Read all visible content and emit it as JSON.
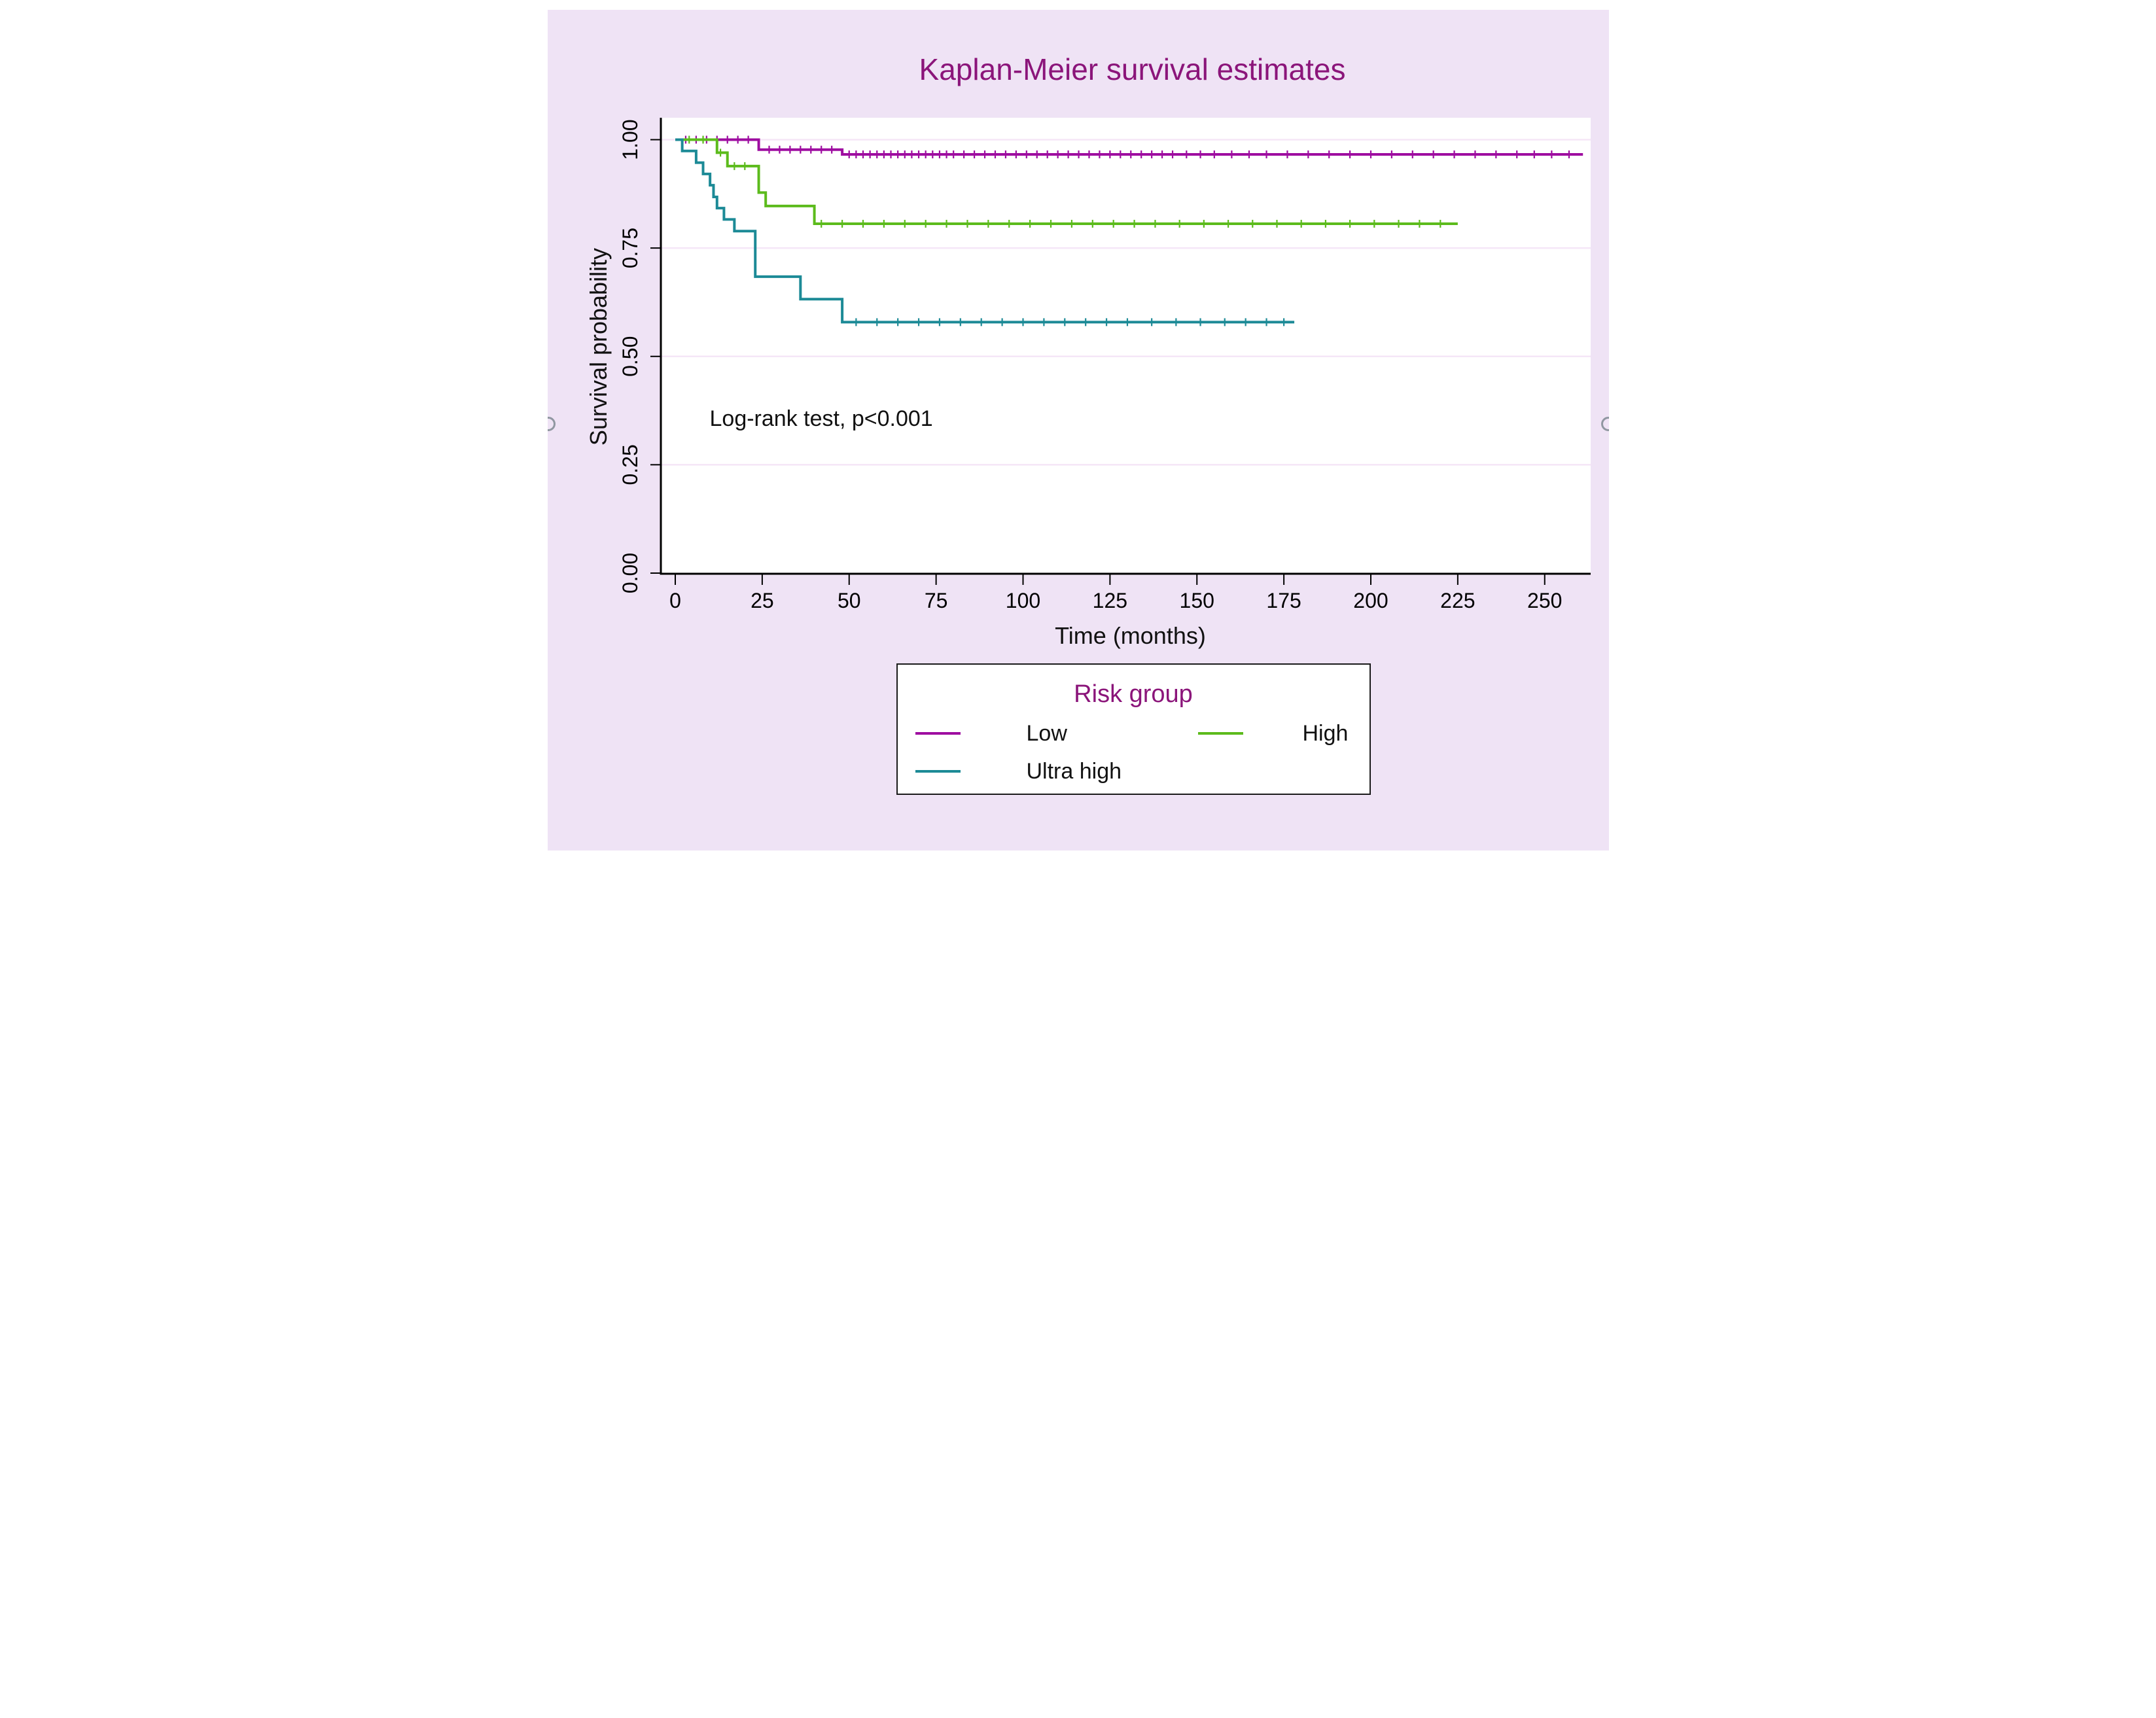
{
  "page": {
    "background_color": "#FFFFFF",
    "canvas_color": "#EFE3F5",
    "title_color": "#8B157A",
    "text_color": "#111111"
  },
  "title": {
    "text": "Kaplan-Meier survival estimates"
  },
  "annotation": {
    "text": "Log-rank test, p<0.001"
  },
  "x_axis": {
    "label": "Time (months)"
  },
  "y_axis": {
    "label": "Survival probability"
  },
  "legend": {
    "title": "Risk group",
    "entries": [
      {
        "label": "Low",
        "color": "#9E0DA0"
      },
      {
        "label": "High",
        "color": "#5CBB1C"
      },
      {
        "label": "Ultra high",
        "color": "#1C8A96"
      }
    ]
  },
  "chart_data": {
    "type": "line",
    "subtype": "kaplan-meier-step",
    "title": "Kaplan-Meier survival estimates",
    "xlabel": "Time (months)",
    "ylabel": "Survival probability",
    "xlim": [
      0,
      263
    ],
    "ylim": [
      0,
      1.0
    ],
    "x_ticks": [
      0,
      25,
      50,
      75,
      100,
      125,
      150,
      175,
      200,
      225,
      250
    ],
    "y_ticks": [
      0.0,
      0.25,
      0.5,
      0.75,
      1.0
    ],
    "y_tick_labels": [
      "0.00",
      "0.25",
      "0.50",
      "0.75",
      "1.00"
    ],
    "grid": "horizontal",
    "gridline_color": "#F5E6F7",
    "plot_background": "#FFFFFF",
    "annotation": "Log-rank test, p<0.001",
    "legend_title": "Risk group",
    "legend_position": "below",
    "series": [
      {
        "name": "Low",
        "color": "#9E0DA0",
        "steps": [
          [
            0,
            1.0
          ],
          [
            24,
            0.977
          ],
          [
            48,
            0.966
          ]
        ],
        "end_time": 261,
        "censor_times": [
          3,
          6,
          9,
          12,
          15,
          18,
          21,
          27,
          30,
          33,
          36,
          39,
          42,
          45,
          50,
          52,
          54,
          56,
          58,
          60,
          62,
          64,
          66,
          68,
          70,
          72,
          74,
          76,
          78,
          80,
          83,
          86,
          89,
          92,
          95,
          98,
          101,
          104,
          107,
          110,
          113,
          116,
          119,
          122,
          125,
          128,
          131,
          134,
          137,
          140,
          143,
          147,
          151,
          155,
          160,
          165,
          170,
          176,
          182,
          188,
          194,
          200,
          206,
          212,
          218,
          224,
          230,
          236,
          242,
          247,
          252,
          257
        ]
      },
      {
        "name": "High",
        "color": "#5CBB1C",
        "steps": [
          [
            0,
            1.0
          ],
          [
            12,
            0.97
          ],
          [
            15,
            0.939
          ],
          [
            24,
            0.878
          ],
          [
            26,
            0.847
          ],
          [
            40,
            0.806
          ]
        ],
        "end_time": 225,
        "censor_times": [
          4,
          8,
          13,
          17,
          20,
          42,
          48,
          54,
          60,
          66,
          72,
          78,
          84,
          90,
          96,
          102,
          108,
          114,
          120,
          126,
          132,
          138,
          145,
          152,
          159,
          166,
          173,
          180,
          187,
          194,
          201,
          208,
          214,
          220
        ]
      },
      {
        "name": "Ultra high",
        "color": "#1C8A96",
        "steps": [
          [
            0,
            1.0
          ],
          [
            2,
            0.974
          ],
          [
            6,
            0.947
          ],
          [
            8,
            0.921
          ],
          [
            10,
            0.895
          ],
          [
            11,
            0.868
          ],
          [
            12,
            0.842
          ],
          [
            14,
            0.816
          ],
          [
            17,
            0.789
          ],
          [
            23,
            0.684
          ],
          [
            36,
            0.632
          ],
          [
            48,
            0.579
          ]
        ],
        "end_time": 178,
        "censor_times": [
          52,
          58,
          64,
          70,
          76,
          82,
          88,
          94,
          100,
          106,
          112,
          118,
          124,
          130,
          137,
          144,
          151,
          158,
          164,
          170,
          175
        ]
      }
    ]
  }
}
